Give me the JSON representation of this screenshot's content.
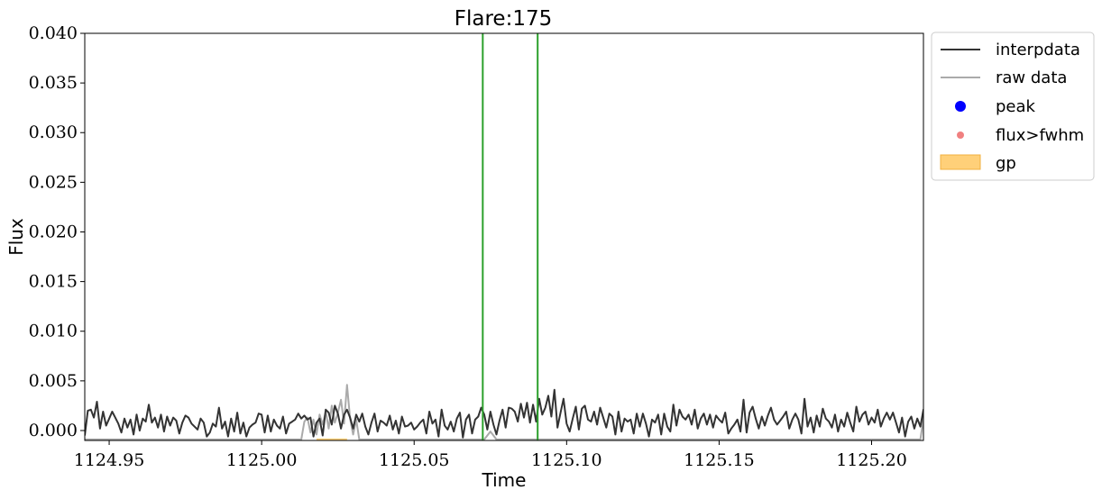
{
  "chart_data": {
    "type": "line",
    "title": "Flare:175",
    "xlabel": "Time",
    "ylabel": "Flux",
    "xlim": [
      1124.942,
      1125.217
    ],
    "ylim": [
      -0.001,
      0.04
    ],
    "xticks": [
      1124.95,
      1125.0,
      1125.05,
      1125.1,
      1125.15,
      1125.2
    ],
    "xtick_labels": [
      "1124.95",
      "1125.00",
      "1125.05",
      "1125.10",
      "1125.15",
      "1125.20"
    ],
    "yticks": [
      0.0,
      0.005,
      0.01,
      0.015,
      0.02,
      0.025,
      0.03,
      0.035,
      0.04
    ],
    "ytick_labels": [
      "0.000",
      "0.005",
      "0.010",
      "0.015",
      "0.020",
      "0.025",
      "0.030",
      "0.035",
      "0.040"
    ],
    "vlines": [
      {
        "x": 1125.0725,
        "color": "#2ca02c"
      },
      {
        "x": 1125.0905,
        "color": "#2ca02c"
      }
    ],
    "legend": {
      "position": "outside upper right",
      "entries": [
        {
          "label": "interpdata",
          "kind": "line",
          "color": "#333333"
        },
        {
          "label": "raw data",
          "kind": "line",
          "color": "#aaaaaa"
        },
        {
          "label": "peak",
          "kind": "marker",
          "color": "#0000ff"
        },
        {
          "label": "flux>fwhm",
          "kind": "marker-small",
          "color": "#f08080"
        },
        {
          "label": "gp",
          "kind": "patch",
          "color": "#ffc861"
        }
      ]
    },
    "series": [
      {
        "name": "interpdata",
        "color": "#333333",
        "x_start": 1124.942,
        "x_step": 0.001,
        "values": [
          -0.0005,
          0.002,
          0.0021,
          0.0013,
          0.0029,
          0.0002,
          0.0019,
          0.0005,
          0.0012,
          0.0019,
          0.0013,
          0.0007,
          -0.0002,
          0.0012,
          0.0003,
          0.0011,
          -0.0004,
          0.0016,
          0.0,
          0.0012,
          0.0009,
          0.0026,
          0.0008,
          0.0013,
          0.0003,
          0.0016,
          -0.0001,
          0.0014,
          0.0005,
          0.0013,
          0.001,
          -0.0003,
          0.0008,
          0.0015,
          0.0013,
          0.0007,
          0.0004,
          0.0001,
          0.0012,
          0.0008,
          -0.0006,
          -0.0002,
          0.0007,
          0.0004,
          0.0023,
          0.0002,
          0.0009,
          -0.0006,
          0.0012,
          -0.0001,
          0.0018,
          -0.0003,
          0.0008,
          -0.0006,
          0.0003,
          0.0006,
          0.0008,
          0.0017,
          0.0016,
          -0.0002,
          0.0015,
          -0.0001,
          0.0011,
          0.0005,
          0.0002,
          0.0014,
          -0.0003,
          0.0007,
          0.0009,
          0.0011,
          0.0017,
          0.0012,
          0.0015,
          0.0011,
          0.0013,
          -0.0006,
          0.0008,
          0.0012,
          -0.0005,
          0.0021,
          0.0018,
          0.0006,
          0.0025,
          0.0017,
          0.0002,
          0.0016,
          0.0021,
          0.0013,
          0.0002,
          0.0016,
          0.0009,
          0.0017,
          0.0004,
          -0.0004,
          0.0008,
          0.0017,
          -0.0001,
          0.001,
          0.0008,
          0.0005,
          0.0015,
          0.0001,
          0.001,
          -0.0003,
          0.0014,
          0.0004,
          0.0005,
          0.0008,
          0.0001,
          0.0004,
          0.0008,
          0.0011,
          -0.0003,
          0.0019,
          0.0007,
          0.0011,
          -0.0006,
          0.0021,
          0.0005,
          0.0001,
          0.0009,
          -0.0001,
          0.0012,
          0.0018,
          -0.0007,
          0.0011,
          0.0016,
          -0.0003,
          0.0011,
          0.0014,
          0.0023,
          0.0016,
          0.0001,
          0.0019,
          0.0006,
          -0.0004,
          0.001,
          0.0021,
          0.0003,
          0.0023,
          0.0022,
          0.0019,
          0.0009,
          0.0027,
          0.0013,
          0.0028,
          0.0008,
          0.0026,
          0.0009,
          0.0032,
          0.0016,
          0.0023,
          0.0035,
          0.0014,
          0.0041,
          0.0003,
          0.0018,
          0.0032,
          0.0007,
          -0.0001,
          0.0012,
          0.0024,
          0.0001,
          0.0022,
          0.0025,
          0.0011,
          0.0009,
          0.0019,
          0.0006,
          0.0023,
          0.0013,
          0.0003,
          0.0017,
          0.0014,
          -0.0004,
          0.0019,
          -0.0001,
          0.0012,
          0.0009,
          0.0011,
          -0.0003,
          0.0017,
          0.0004,
          0.0017,
          0.0007,
          -0.0006,
          0.0011,
          0.0008,
          0.0016,
          -0.0004,
          0.0017,
          0.0004,
          -0.0001,
          0.0026,
          0.0005,
          0.0021,
          0.0014,
          0.0011,
          0.0016,
          0.0006,
          0.0021,
          0.0002,
          0.0012,
          0.0017,
          0.0006,
          0.0016,
          0.0003,
          0.0015,
          0.0011,
          0.0008,
          0.0018,
          -0.0003,
          0.0002,
          0.0006,
          0.0011,
          -0.0001,
          0.0031,
          -0.0002,
          0.0018,
          0.0024,
          0.0012,
          0.0002,
          0.0014,
          0.0005,
          0.0015,
          0.0023,
          0.0011,
          0.0006,
          0.001,
          0.0014,
          0.0019,
          0.0002,
          0.0011,
          0.0017,
          0.0011,
          -0.0003,
          0.0032,
          0.0004,
          0.0013,
          -0.0002,
          0.0015,
          0.0004,
          0.0022,
          0.0012,
          0.0009,
          0.0003,
          0.0016,
          -0.0001,
          0.0011,
          0.0004,
          0.0018,
          0.0008,
          -0.0001,
          0.0024,
          0.0009,
          0.0016,
          0.0019,
          0.0006,
          0.0013,
          0.0008,
          0.0021,
          0.0004,
          0.0012,
          0.0018,
          0.0011,
          0.0018,
          0.0008,
          -0.0002,
          0.0013,
          -0.0006,
          0.0009,
          0.0014,
          0.0002,
          0.0012,
          0.0004,
          0.0021,
          0.0012,
          0.0009,
          0.0001,
          -0.0008,
          -0.0004,
          -0.0001,
          0.0002,
          0.0005
        ]
      },
      {
        "name": "raw data",
        "color": "#aaaaaa",
        "x_start": 1124.942,
        "x_step": 0.001,
        "values": [
          -0.0009,
          -0.0009,
          -0.0009,
          -0.0009,
          -0.0009,
          -0.0009,
          -0.0009,
          -0.0009,
          -0.0009,
          -0.0009,
          -0.0009,
          -0.0009,
          -0.0009,
          -0.0009,
          -0.0009,
          -0.0009,
          -0.0009,
          -0.0009,
          -0.0009,
          -0.0009,
          -0.0009,
          -0.0009,
          -0.0009,
          -0.0009,
          -0.0009,
          -0.0009,
          -0.0009,
          -0.0009,
          -0.0009,
          -0.0009,
          -0.0009,
          -0.0009,
          -0.0009,
          -0.0009,
          -0.0009,
          -0.0009,
          -0.0009,
          -0.0009,
          -0.0009,
          -0.0009,
          -0.0009,
          -0.0009,
          -0.0009,
          -0.0009,
          -0.0009,
          -0.0009,
          -0.0009,
          -0.0009,
          -0.0009,
          -0.0009,
          -0.0009,
          -0.0009,
          -0.0009,
          -0.0009,
          -0.0009,
          -0.0009,
          -0.0009,
          -0.0009,
          -0.0009,
          -0.0009,
          -0.0009,
          -0.0009,
          -0.0009,
          -0.0009,
          -0.0009,
          -0.0009,
          -0.0009,
          -0.0009,
          -0.0009,
          -0.0009,
          -0.0009,
          -0.0009,
          0.0009,
          0.0013,
          -0.0002,
          0.0011,
          -0.0004,
          0.0016,
          0.0006,
          0.0019,
          0.0002,
          0.0025,
          0.0008,
          0.0018,
          0.0031,
          0.0007,
          0.0046,
          0.0012,
          -0.0004,
          0.0011,
          -0.0009,
          -0.0009,
          -0.0009,
          -0.0009,
          -0.0009,
          -0.0009,
          -0.0009,
          -0.0009,
          -0.0009,
          -0.0009,
          -0.0009,
          -0.0009,
          -0.0009,
          -0.0009,
          -0.0009,
          -0.0009,
          -0.0009,
          -0.0009,
          -0.0009,
          -0.0009,
          -0.0009,
          -0.0009,
          -0.0009,
          -0.0009,
          -0.0009,
          -0.0009,
          -0.0009,
          -0.0009,
          -0.0009,
          -0.0009,
          -0.0009,
          -0.0009,
          -0.0009,
          -0.0009,
          -0.0009,
          -0.0009,
          -0.0009,
          -0.0009,
          -0.0009,
          -0.0009,
          -0.0009,
          -0.0009,
          -0.0005,
          -0.0001,
          -0.0005,
          -0.0009,
          -0.0009,
          -0.0009,
          -0.0009,
          -0.0009,
          -0.0009,
          -0.0009,
          -0.0009,
          -0.0009,
          -0.0009,
          -0.0009,
          -0.0009,
          -0.0009,
          -0.0009,
          -0.0009,
          -0.0009,
          -0.0009,
          -0.0009,
          -0.0009,
          -0.0009,
          -0.0009,
          -0.0009,
          -0.0009,
          -0.0009,
          -0.0009,
          -0.0009,
          -0.0009,
          -0.0009,
          -0.0009,
          -0.0009,
          -0.0009,
          -0.0009,
          -0.0009,
          -0.0009,
          -0.0009,
          -0.0009,
          -0.0009,
          -0.0009,
          -0.0009,
          -0.0009,
          -0.0009,
          -0.0009,
          -0.0009,
          -0.0009,
          -0.0009,
          -0.0009,
          -0.0009,
          -0.0009,
          -0.0009,
          -0.0009,
          -0.0009,
          -0.0009,
          -0.0009,
          -0.0009,
          -0.0009,
          -0.0009,
          -0.0009,
          -0.0009,
          -0.0009,
          -0.0009,
          -0.0009,
          -0.0009,
          -0.0009,
          -0.0009,
          -0.0009,
          -0.0009,
          -0.0009,
          -0.0009,
          -0.0009,
          -0.0009,
          -0.0009,
          -0.0009,
          -0.0009,
          -0.0009,
          -0.0009,
          -0.0009,
          -0.0009,
          -0.0009,
          -0.0009,
          -0.0009,
          -0.0009,
          -0.0009,
          -0.0009,
          -0.0009,
          -0.0009,
          -0.0009,
          -0.0009,
          -0.0009,
          -0.0009,
          -0.0009,
          -0.0009,
          -0.0009,
          -0.0009,
          -0.0009,
          -0.0009,
          -0.0009,
          -0.0009,
          -0.0009,
          -0.0009,
          -0.0009,
          -0.0009,
          -0.0009,
          -0.0009,
          -0.0009,
          -0.0009,
          -0.0009,
          -0.0009,
          -0.0009,
          -0.0009,
          -0.0009,
          -0.0009,
          -0.0009,
          -0.0009,
          -0.0009,
          -0.0009,
          -0.0009,
          -0.0009,
          -0.0009,
          -0.0009,
          -0.0009,
          -0.0009,
          -0.0009,
          -0.0009,
          -0.0009,
          -0.0009,
          -0.0009,
          -0.0009,
          -0.0009,
          -0.0009,
          -0.0009,
          -0.0009,
          -0.0009,
          -0.0009,
          -0.0009,
          -0.0009,
          -0.0009,
          -0.0009,
          -0.0009,
          -0.0009,
          -0.0009,
          0.0012,
          -0.0009,
          -0.0009,
          -0.0009,
          -0.0009,
          -0.0009,
          -0.0009,
          -0.0009,
          -0.0009
        ]
      },
      {
        "name": "gp",
        "color": "#ffc861",
        "x": [
          1125.018,
          1125.028
        ],
        "values": [
          -0.001,
          -0.0008
        ]
      }
    ]
  }
}
